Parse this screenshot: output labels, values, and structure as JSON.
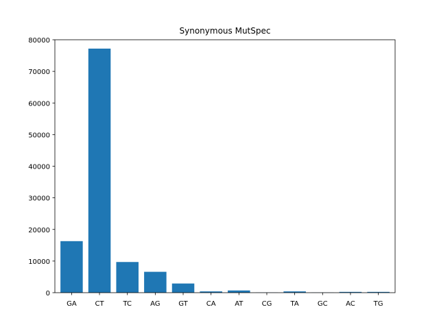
{
  "chart_data": {
    "type": "bar",
    "title": "Synonymous MutSpec",
    "xlabel": "",
    "ylabel": "",
    "categories": [
      "GA",
      "CT",
      "TC",
      "AG",
      "GT",
      "CA",
      "AT",
      "CG",
      "TA",
      "GC",
      "AC",
      "TG"
    ],
    "values": [
      16300,
      77200,
      9700,
      6600,
      2900,
      400,
      700,
      50,
      400,
      50,
      250,
      250
    ],
    "ylim": [
      0,
      80000
    ],
    "yticks": [
      0,
      10000,
      20000,
      30000,
      40000,
      50000,
      60000,
      70000,
      80000
    ],
    "grid": false,
    "bar_color": "#1f77b4"
  }
}
